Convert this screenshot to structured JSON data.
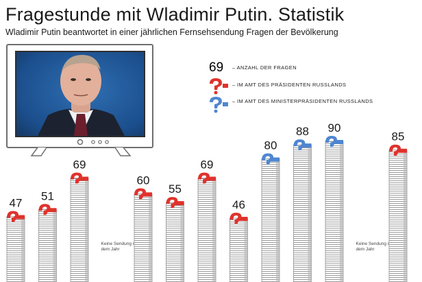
{
  "header": {
    "title": "Fragestunde mit Wladimir Putin. Statistik",
    "subtitle": "Wladimir Putin beantwortet in einer jährlichen Fernsehsendung Fragen der Bevölkerung"
  },
  "legend": {
    "count_sample": "69",
    "count_label": "– ANZAHL DER FRAGEN",
    "president_label": "– IM AMT DES PRÄSIDENTEN RUSSLANDS",
    "pm_label": "– IM AMT DES MINISTERPRÄSIDENTEN RUSSLANDS"
  },
  "tv": {
    "photo_subject": "Wladimir Putin"
  },
  "colors": {
    "president": "#e0322c",
    "prime_minister": "#4f86d1",
    "stack": "#8f8f8f",
    "tv_frame": "#6e6e6e"
  },
  "chart_data": {
    "type": "bar",
    "title": "Fragestunde mit Wladimir Putin. Statistik",
    "subtitle": "Wladimir Putin beantwortet in einer jährlichen Fernsehsendung Fragen der Bevölkerung",
    "value_unit": "Anzahl der Fragen",
    "series": [
      {
        "name": "Im Amt des Präsidenten Russlands",
        "color": "#e0322c"
      },
      {
        "name": "Im Amt des Ministerpräsidenten Russlands",
        "color": "#4f86d1"
      }
    ],
    "bars": [
      {
        "value": 47,
        "role": "president"
      },
      {
        "value": 51,
        "role": "president"
      },
      {
        "value": 69,
        "role": "president"
      },
      {
        "value": null,
        "note": "Keine Sendung in dem Jahr"
      },
      {
        "value": 60,
        "role": "president"
      },
      {
        "value": 55,
        "role": "president"
      },
      {
        "value": 69,
        "role": "president"
      },
      {
        "value": 46,
        "role": "president"
      },
      {
        "value": 80,
        "role": "prime_minister"
      },
      {
        "value": 88,
        "role": "prime_minister"
      },
      {
        "value": 90,
        "role": "prime_minister"
      },
      {
        "value": null,
        "note": "Keine Sendung in dem Jahr"
      },
      {
        "value": 85,
        "role": "president"
      }
    ],
    "ylim": [
      0,
      90
    ],
    "grid": false,
    "legend_position": "top-right"
  }
}
